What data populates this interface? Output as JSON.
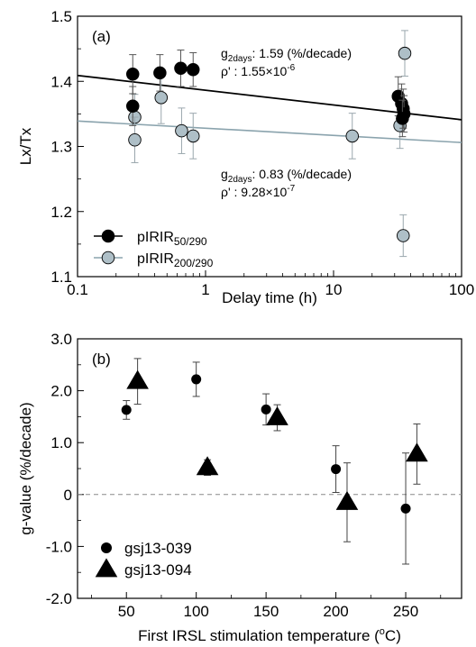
{
  "chart_data": [
    {
      "type": "scatter",
      "panel_label": "(a)",
      "xlabel": "Delay time (h)",
      "ylabel": "Lx/Tx",
      "xscale": "log",
      "xlim": [
        0.1,
        100
      ],
      "ylim": [
        1.1,
        1.5
      ],
      "xticks": [
        0.1,
        1,
        10,
        100
      ],
      "xtick_labels": [
        "0.1",
        "1",
        "10",
        "100"
      ],
      "yticks": [
        1.1,
        1.2,
        1.3,
        1.4,
        1.5
      ],
      "ytick_labels": [
        "1.1",
        "1.2",
        "1.3",
        "1.4",
        "1.5"
      ],
      "grid": false,
      "legend_position": "bottom-left",
      "series": [
        {
          "name": "pIRIR",
          "name_sub": "50/290",
          "color": "#000000",
          "marker": "circle",
          "points": [
            {
              "x": 0.27,
              "y": 1.411,
              "err": 0.03
            },
            {
              "x": 0.27,
              "y": 1.362,
              "err": 0.03
            },
            {
              "x": 0.44,
              "y": 1.413,
              "err": 0.028
            },
            {
              "x": 0.64,
              "y": 1.42,
              "err": 0.028
            },
            {
              "x": 0.8,
              "y": 1.418,
              "err": 0.026
            },
            {
              "x": 32.0,
              "y": 1.377,
              "err": 0.03
            },
            {
              "x": 34.0,
              "y": 1.366,
              "err": 0.03
            },
            {
              "x": 35.0,
              "y": 1.358,
              "err": 0.03
            },
            {
              "x": 35.5,
              "y": 1.35,
              "err": 0.028
            },
            {
              "x": 34.5,
              "y": 1.343,
              "err": 0.028
            }
          ],
          "trend": {
            "x": [
              0.1,
              100
            ],
            "y": [
              1.409,
              1.341
            ]
          },
          "annotation": {
            "g_label": "g",
            "g_sub": "2days",
            "g_text": ": 1.59 (%/decade)",
            "rho_label": "ρ'",
            "rho_text": " : 1.55×10",
            "rho_exp": "-6"
          }
        },
        {
          "name": "pIRIR",
          "name_sub": "200/290",
          "color": "#aebfc7",
          "marker": "circle",
          "points": [
            {
              "x": 0.28,
              "y": 1.345,
              "err": 0.035
            },
            {
              "x": 0.28,
              "y": 1.31,
              "err": 0.035
            },
            {
              "x": 0.45,
              "y": 1.375,
              "err": 0.04
            },
            {
              "x": 0.65,
              "y": 1.324,
              "err": 0.035
            },
            {
              "x": 0.8,
              "y": 1.316,
              "err": 0.035
            },
            {
              "x": 14.0,
              "y": 1.316,
              "err": 0.035
            },
            {
              "x": 33.0,
              "y": 1.332,
              "err": 0.035
            },
            {
              "x": 36.0,
              "y": 1.443,
              "err": 0.035
            },
            {
              "x": 35.0,
              "y": 1.163,
              "err": 0.032
            }
          ],
          "trend": {
            "x": [
              0.1,
              100
            ],
            "y": [
              1.339,
              1.306
            ]
          },
          "annotation": {
            "g_label": "g",
            "g_sub": "2days",
            "g_text": ": 0.83 (%/decade)",
            "rho_label": "ρ'",
            "rho_text": " : 9.28×10",
            "rho_exp": "-7"
          }
        }
      ]
    },
    {
      "type": "scatter",
      "panel_label": "(b)",
      "xlabel": "First IRSL stimulation temperature (",
      "xlabel_sup": "o",
      "xlabel_end": "C)",
      "ylabel": "g-value (%/decade)",
      "xlim": [
        15,
        290
      ],
      "ylim": [
        -2.0,
        3.0
      ],
      "xticks": [
        50,
        100,
        150,
        200,
        250
      ],
      "xtick_labels": [
        "50",
        "100",
        "150",
        "200",
        "250"
      ],
      "yticks": [
        -2.0,
        -1.0,
        0,
        1.0,
        2.0,
        3.0
      ],
      "ytick_labels": [
        "-2.0",
        "-1.0",
        "0",
        "1.0",
        "2.0",
        "3.0"
      ],
      "grid": false,
      "reference_line_y": 0,
      "legend_position": "bottom-left",
      "series": [
        {
          "name": "gsj13-039",
          "marker": "circle",
          "points": [
            {
              "x": 50,
              "y": 1.63,
              "err": 0.18
            },
            {
              "x": 100,
              "y": 2.22,
              "err": 0.33
            },
            {
              "x": 150,
              "y": 1.64,
              "err": 0.3
            },
            {
              "x": 200,
              "y": 0.49,
              "err": 0.45
            },
            {
              "x": 250,
              "y": -0.27,
              "err": 1.07
            }
          ]
        },
        {
          "name": "gsj13-094",
          "marker": "triangle",
          "points": [
            {
              "x": 58,
              "y": 2.18,
              "err": 0.44
            },
            {
              "x": 108,
              "y": 0.52,
              "err": 0.15
            },
            {
              "x": 158,
              "y": 1.48,
              "err": 0.25
            },
            {
              "x": 208,
              "y": -0.15,
              "err": 0.76
            },
            {
              "x": 258,
              "y": 0.78,
              "err": 0.58
            }
          ]
        }
      ]
    }
  ]
}
